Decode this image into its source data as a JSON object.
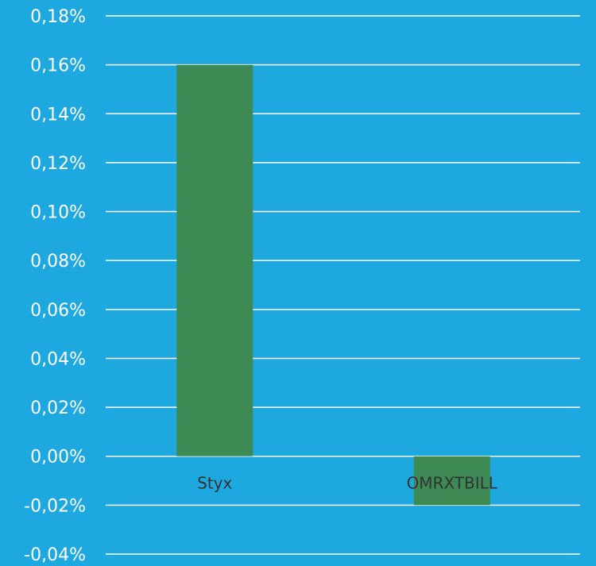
{
  "chart_data": {
    "type": "bar",
    "title": "",
    "xlabel": "",
    "ylabel": "",
    "categories": [
      "Styx",
      "OMRXTBILL"
    ],
    "values": [
      0.16,
      -0.02
    ],
    "unit": "%",
    "ylim": [
      -0.04,
      0.18
    ],
    "yticks": [
      0.18,
      0.16,
      0.14,
      0.12,
      0.1,
      0.08,
      0.06,
      0.04,
      0.02,
      0.0,
      -0.02,
      -0.04
    ],
    "ytick_labels": [
      "0,18%",
      "0,16%",
      "0,14%",
      "0,12%",
      "0,10%",
      "0,08%",
      "0,06%",
      "0,04%",
      "0,02%",
      "0,00%",
      "-0,02%",
      "-0,04%"
    ],
    "grid": true,
    "legend": "none"
  },
  "colors": {
    "background": "#1EA8E0",
    "bar": "#3D8A55",
    "gridline": "#FFFFFF",
    "tick_text": "#FFFFFF",
    "category_text": "#333333"
  }
}
